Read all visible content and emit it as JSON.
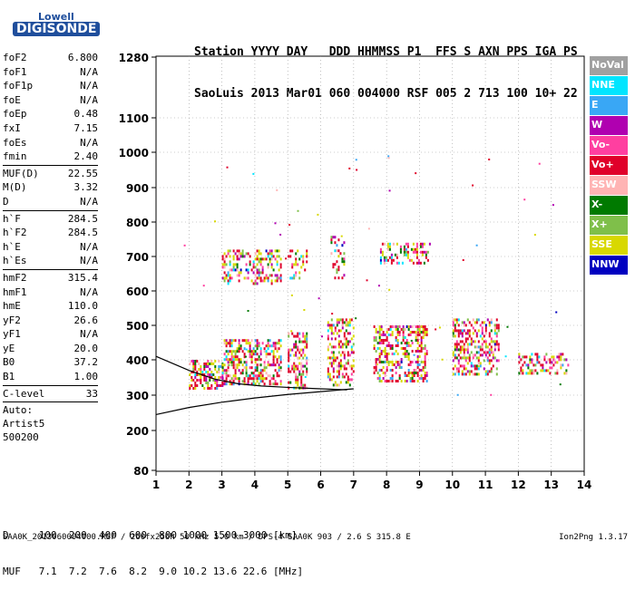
{
  "logo": {
    "top": "Lowell",
    "bottom": "DIGISONDE"
  },
  "header": {
    "line1": "Station YYYY DAY   DDD HHMMSS P1  FFS S AXN PPS IGA PS",
    "line2": "SaoLuis 2013 Mar01 060 004000 RSF 005 2 713 100 10+ 22"
  },
  "params": [
    {
      "group": [
        [
          "foF2",
          "6.800"
        ],
        [
          "foF1",
          "N/A"
        ],
        [
          "foF1p",
          "N/A"
        ],
        [
          "foE",
          "N/A"
        ],
        [
          "foEp",
          "0.48"
        ],
        [
          "fxI",
          "7.15"
        ],
        [
          "foEs",
          "N/A"
        ],
        [
          "fmin",
          "2.40"
        ]
      ]
    },
    {
      "group": [
        [
          "MUF(D)",
          "22.55"
        ],
        [
          "M(D)",
          "3.32"
        ],
        [
          "D",
          "N/A"
        ]
      ]
    },
    {
      "group": [
        [
          "h`F",
          "284.5"
        ],
        [
          "h`F2",
          "284.5"
        ],
        [
          "h`E",
          "N/A"
        ],
        [
          "h`Es",
          "N/A"
        ]
      ]
    },
    {
      "group": [
        [
          "hmF2",
          "315.4"
        ],
        [
          "hmF1",
          "N/A"
        ],
        [
          "hmE",
          "110.0"
        ],
        [
          "yF2",
          "26.6"
        ],
        [
          "yF1",
          "N/A"
        ],
        [
          "yE",
          "20.0"
        ],
        [
          "B0",
          "37.2"
        ],
        [
          "B1",
          "1.00"
        ]
      ]
    },
    {
      "group": [
        [
          "C-level",
          "33"
        ]
      ]
    }
  ],
  "auto": {
    "line1": "Auto:",
    "line2": "Artist5",
    "line3": "500200"
  },
  "legend": [
    {
      "label": "NoVal",
      "color": "#a0a0a0"
    },
    {
      "label": "NNE",
      "color": "#00e5ff"
    },
    {
      "label": "E",
      "color": "#39a7f5"
    },
    {
      "label": "W",
      "color": "#b000b0"
    },
    {
      "label": "Vo-",
      "color": "#ff3fa0"
    },
    {
      "label": "Vo+",
      "color": "#e0002a"
    },
    {
      "label": "SSW",
      "color": "#ffb4b4"
    },
    {
      "label": "X-",
      "color": "#007a00"
    },
    {
      "label": "X+",
      "color": "#7fbf4a"
    },
    {
      "label": "SSE",
      "color": "#d8d800"
    },
    {
      "label": "NNW",
      "color": "#0000c0"
    }
  ],
  "bottom": {
    "row1": "D     100  200  400  600  800 1000 1500 3000 [km]",
    "row2": "MUF   7.1  7.2  7.6  8.2  9.0 10.2 13.6 22.6 [MHz]"
  },
  "footer": {
    "left": "SAA0K_2013060004000.RSF / 260fx256h 50 kHz 5.0 km / DPS-4 SAA0K 903 / 2.6 S 315.8 E",
    "right": "Ion2Png 1.3.17"
  },
  "chart_data": {
    "type": "scatter",
    "xlim": [
      1,
      14
    ],
    "ylim": [
      80,
      1280
    ],
    "y_scale": "reciprocal-like (ionogram virtual height)",
    "x_ticks": [
      1,
      2,
      3,
      4,
      5,
      6,
      7,
      8,
      9,
      10,
      11,
      12,
      13,
      14
    ],
    "y_ticks": [
      80,
      200,
      300,
      400,
      500,
      600,
      700,
      800,
      900,
      1000,
      1100,
      1280
    ],
    "clusters": [
      {
        "x": [
          2.0,
          3.0
        ],
        "y": [
          320,
          400
        ],
        "density": 0.55
      },
      {
        "x": [
          3.0,
          4.8
        ],
        "y": [
          330,
          460
        ],
        "density": 0.5
      },
      {
        "x": [
          3.0,
          4.8
        ],
        "y": [
          620,
          720
        ],
        "density": 0.35
      },
      {
        "x": [
          5.0,
          5.6
        ],
        "y": [
          320,
          480
        ],
        "density": 0.45
      },
      {
        "x": [
          5.0,
          5.6
        ],
        "y": [
          640,
          720
        ],
        "density": 0.25
      },
      {
        "x": [
          6.2,
          7.0
        ],
        "y": [
          330,
          520
        ],
        "density": 0.45
      },
      {
        "x": [
          6.3,
          6.7
        ],
        "y": [
          640,
          760
        ],
        "density": 0.25
      },
      {
        "x": [
          7.6,
          9.2
        ],
        "y": [
          340,
          500
        ],
        "density": 0.45
      },
      {
        "x": [
          7.8,
          9.3
        ],
        "y": [
          680,
          740
        ],
        "density": 0.35
      },
      {
        "x": [
          10.0,
          11.4
        ],
        "y": [
          360,
          520
        ],
        "density": 0.45
      },
      {
        "x": [
          12.0,
          13.5
        ],
        "y": [
          360,
          420
        ],
        "density": 0.4
      }
    ],
    "traces": [
      {
        "name": "",
        "x": [
          1.0,
          2.0,
          3.0,
          4.0,
          5.0,
          6.0,
          7.0
        ],
        "y": [
          245,
          265,
          280,
          292,
          302,
          310,
          318
        ]
      },
      {
        "name": "",
        "x": [
          1.0,
          2.0,
          2.8,
          3.5,
          4.2,
          5.0,
          6.0,
          6.8
        ],
        "y": [
          410,
          370,
          345,
          332,
          326,
          322,
          318,
          315
        ]
      }
    ]
  }
}
